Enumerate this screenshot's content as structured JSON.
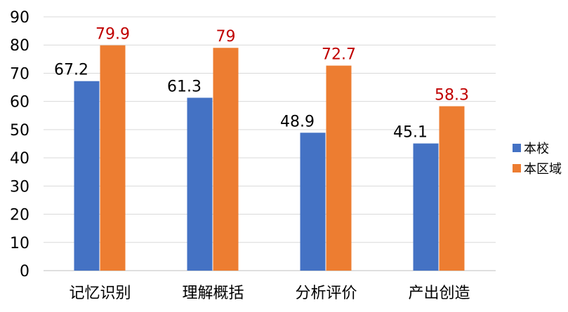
{
  "chart_data": {
    "type": "bar",
    "categories": [
      "记忆识别",
      "理解概括",
      "分析评价",
      "产出创造"
    ],
    "series": [
      {
        "name": "本校",
        "values": [
          67.2,
          61.3,
          48.9,
          45.1
        ],
        "color": "#4472C4",
        "label_color": "#000000"
      },
      {
        "name": "本区域",
        "values": [
          79.9,
          79,
          72.7,
          58.3
        ],
        "color": "#ED7D31",
        "label_color": "#C00000"
      }
    ],
    "data_labels": [
      [
        "67.2",
        "61.3",
        "48.9",
        "45.1"
      ],
      [
        "79.9",
        "79",
        "72.7",
        "58.3"
      ]
    ],
    "y_ticks": [
      "0",
      "10",
      "20",
      "30",
      "40",
      "50",
      "60",
      "70",
      "80",
      "90"
    ],
    "ylim": [
      0,
      90
    ],
    "grid": true,
    "legend_position": "right",
    "title": "",
    "xlabel": "",
    "ylabel": ""
  }
}
